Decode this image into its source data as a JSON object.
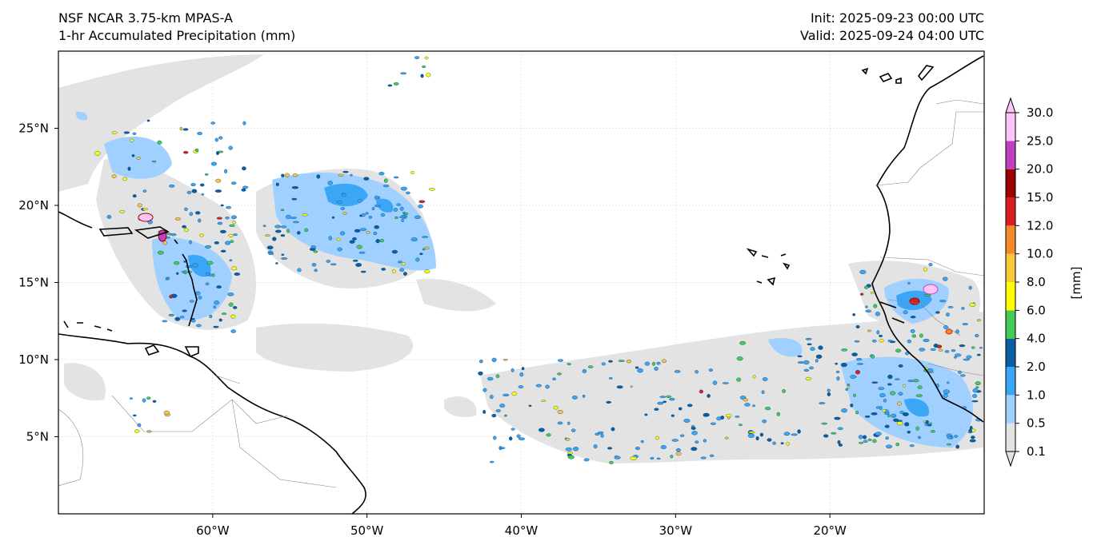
{
  "title": {
    "model": "NSF NCAR 3.75-km MPAS-A",
    "field": "1-hr Accumulated Precipitation (mm)",
    "init": "Init: 2025-09-23 00:00 UTC",
    "valid": "Valid: 2025-09-24 04:00 UTC"
  },
  "map": {
    "lon_range": [
      -70,
      -10
    ],
    "lat_range": [
      0,
      30
    ],
    "lon_ticks": [
      {
        "value": -60,
        "label": "60°W"
      },
      {
        "value": -50,
        "label": "50°W"
      },
      {
        "value": -40,
        "label": "40°W"
      },
      {
        "value": -30,
        "label": "30°W"
      },
      {
        "value": -20,
        "label": "20°W"
      }
    ],
    "lat_ticks": [
      {
        "value": 25,
        "label": "25°N"
      },
      {
        "value": 20,
        "label": "20°N"
      },
      {
        "value": 15,
        "label": "15°N"
      },
      {
        "value": 10,
        "label": "10°N"
      },
      {
        "value": 5,
        "label": "5°N"
      }
    ],
    "grid": true
  },
  "colorbar": {
    "unit_label": "[mm]",
    "levels": [
      "0.1",
      "0.5",
      "1.0",
      "2.0",
      "4.0",
      "6.0",
      "8.0",
      "10.0",
      "12.0",
      "15.0",
      "20.0",
      "25.0",
      "30.0"
    ],
    "colors": [
      "#e3e3e3",
      "#9fd0ff",
      "#3aa6f5",
      "#0a5fa3",
      "#44cc55",
      "#ffff00",
      "#fcc63a",
      "#f28b2a",
      "#d81e1e",
      "#9b0000",
      "#c23fc2",
      "#fbc6f7"
    ],
    "extend": "both"
  },
  "colors": {
    "land_outline": "#000000",
    "border": "#888888",
    "grid": "#d0d0d0"
  }
}
